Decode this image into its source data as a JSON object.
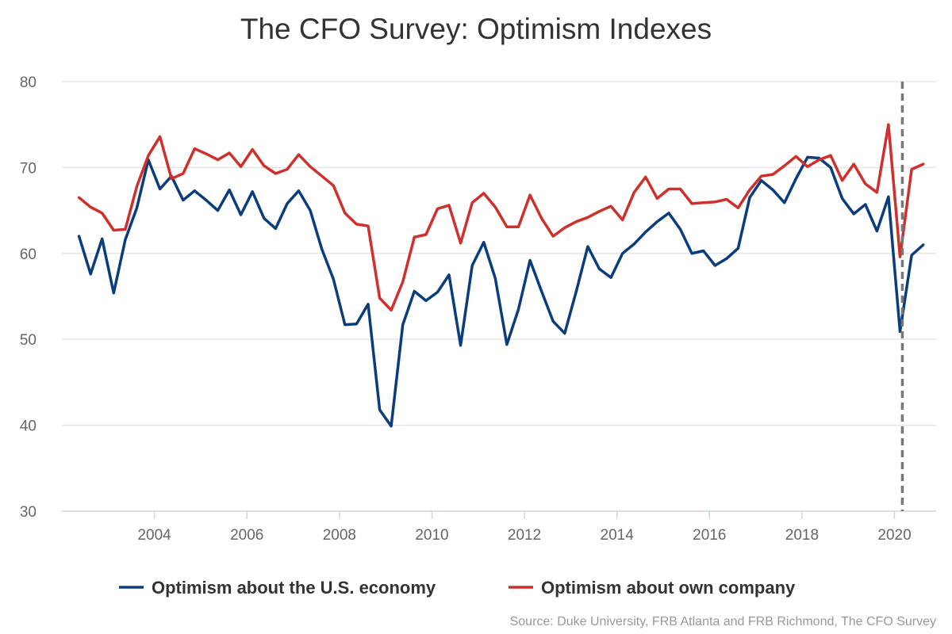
{
  "chart_data": {
    "type": "line",
    "title": "The CFO Survey: Optimism Indexes",
    "ylim": [
      30,
      80
    ],
    "yticks": [
      30,
      40,
      50,
      60,
      70,
      80
    ],
    "xlim": [
      2002.0,
      2020.9
    ],
    "xticks": [
      2004,
      2006,
      2008,
      2010,
      2012,
      2014,
      2016,
      2018,
      2020
    ],
    "grid": true,
    "legend_placement": "bottom-center",
    "reference_line": {
      "x": 2020.17,
      "style": "dashed",
      "color": "#777777"
    },
    "series": [
      {
        "name": "Optimism about the U.S. economy",
        "color": "#0b3d7e",
        "x": [
          2002.37,
          2002.62,
          2002.87,
          2003.12,
          2003.37,
          2003.62,
          2003.87,
          2004.12,
          2004.37,
          2004.62,
          2004.87,
          2005.12,
          2005.37,
          2005.62,
          2005.87,
          2006.12,
          2006.37,
          2006.62,
          2006.87,
          2007.12,
          2007.37,
          2007.62,
          2007.87,
          2008.12,
          2008.37,
          2008.62,
          2008.87,
          2009.12,
          2009.37,
          2009.62,
          2009.87,
          2010.12,
          2010.37,
          2010.62,
          2010.87,
          2011.12,
          2011.37,
          2011.62,
          2011.87,
          2012.12,
          2012.37,
          2012.62,
          2012.87,
          2013.12,
          2013.37,
          2013.62,
          2013.87,
          2014.12,
          2014.37,
          2014.62,
          2014.87,
          2015.12,
          2015.37,
          2015.62,
          2015.87,
          2016.12,
          2016.37,
          2016.62,
          2016.87,
          2017.12,
          2017.37,
          2017.62,
          2017.87,
          2018.12,
          2018.37,
          2018.62,
          2018.87,
          2019.12,
          2019.37,
          2019.62,
          2019.87,
          2020.12,
          2020.37,
          2020.62
        ],
        "y": [
          62.0,
          57.6,
          61.7,
          55.4,
          61.6,
          65.3,
          70.9,
          67.5,
          69.0,
          66.2,
          67.3,
          66.2,
          65.0,
          67.4,
          64.5,
          67.2,
          64.1,
          62.9,
          65.8,
          67.3,
          65.0,
          60.5,
          57.0,
          51.7,
          51.8,
          54.1,
          41.8,
          39.9,
          51.7,
          55.6,
          54.5,
          55.5,
          57.5,
          49.3,
          58.6,
          61.3,
          57.1,
          49.4,
          53.5,
          59.2,
          55.6,
          52.1,
          50.7,
          55.6,
          60.8,
          58.2,
          57.2,
          60.0,
          61.1,
          62.5,
          63.7,
          64.7,
          62.8,
          60.0,
          60.3,
          58.6,
          59.4,
          60.6,
          66.5,
          68.5,
          67.4,
          65.9,
          68.7,
          71.2,
          71.1,
          70.0,
          66.4,
          64.6,
          65.7,
          62.6,
          66.6,
          50.9,
          59.8,
          61.0
        ]
      },
      {
        "name": "Optimism about own company",
        "color": "#d02f2b",
        "x": [
          2002.37,
          2002.62,
          2002.87,
          2003.12,
          2003.37,
          2003.62,
          2003.87,
          2004.12,
          2004.37,
          2004.62,
          2004.87,
          2005.12,
          2005.37,
          2005.62,
          2005.87,
          2006.12,
          2006.37,
          2006.62,
          2006.87,
          2007.12,
          2007.37,
          2007.62,
          2007.87,
          2008.12,
          2008.37,
          2008.62,
          2008.87,
          2009.12,
          2009.37,
          2009.62,
          2009.87,
          2010.12,
          2010.37,
          2010.62,
          2010.87,
          2011.12,
          2011.37,
          2011.62,
          2011.87,
          2012.12,
          2012.37,
          2012.62,
          2012.87,
          2013.12,
          2013.37,
          2013.62,
          2013.87,
          2014.12,
          2014.37,
          2014.62,
          2014.87,
          2015.12,
          2015.37,
          2015.62,
          2015.87,
          2016.12,
          2016.37,
          2016.62,
          2016.87,
          2017.12,
          2017.37,
          2017.62,
          2017.87,
          2018.12,
          2018.37,
          2018.62,
          2018.87,
          2019.12,
          2019.37,
          2019.62,
          2019.87,
          2020.12,
          2020.37,
          2020.62
        ],
        "y": [
          66.5,
          65.4,
          64.7,
          62.7,
          62.8,
          67.8,
          71.4,
          73.6,
          68.7,
          69.3,
          72.2,
          71.6,
          70.9,
          71.7,
          70.1,
          72.1,
          70.2,
          69.3,
          69.8,
          71.5,
          70.1,
          69.0,
          67.9,
          64.7,
          63.4,
          63.2,
          54.8,
          53.4,
          56.7,
          61.9,
          62.2,
          65.2,
          65.6,
          61.2,
          65.9,
          67.0,
          65.4,
          63.1,
          63.1,
          66.8,
          64.1,
          62.0,
          63.0,
          63.7,
          64.2,
          64.9,
          65.5,
          63.9,
          67.1,
          68.9,
          66.4,
          67.5,
          67.5,
          65.8,
          65.9,
          66.0,
          66.3,
          65.3,
          67.4,
          69.0,
          69.2,
          70.2,
          71.3,
          70.1,
          70.9,
          71.4,
          68.5,
          70.4,
          68.1,
          67.1,
          75.0,
          59.6,
          69.8,
          70.4
        ]
      }
    ],
    "source": "Source: Duke University, FRB Atlanta and FRB Richmond, The CFO Survey"
  }
}
